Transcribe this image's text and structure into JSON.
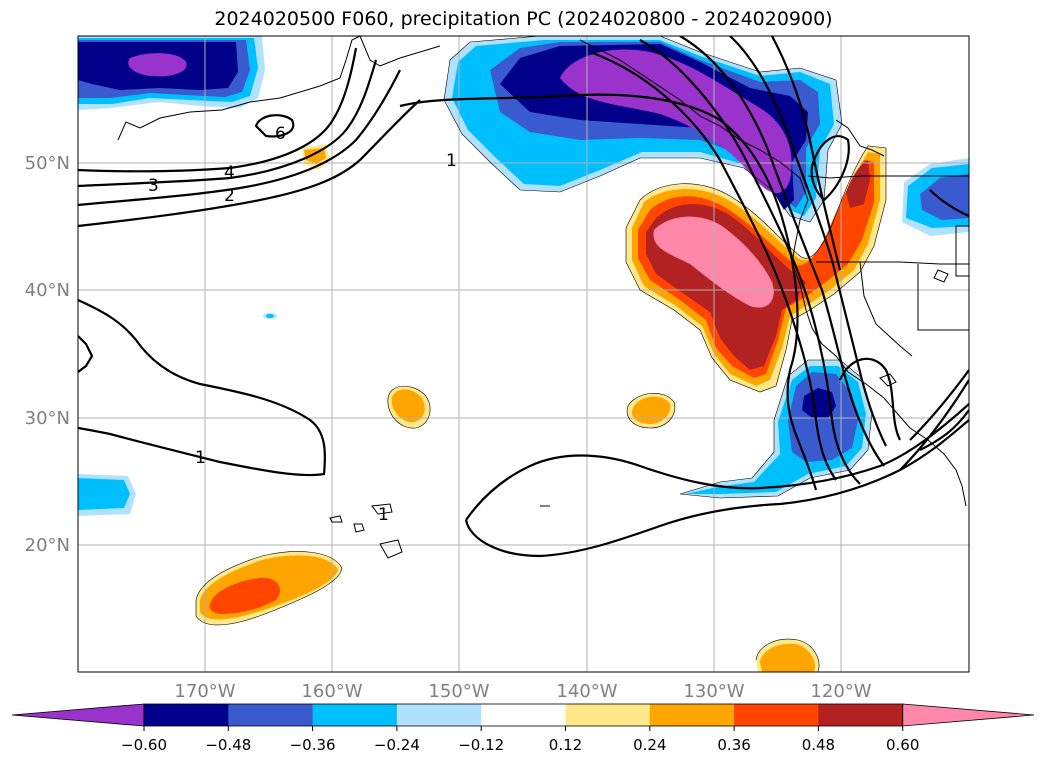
{
  "title": "2024020500 F060, precipitation PC (2024020800 - 2024020900)",
  "lat_labels": [
    "50°N",
    "40°N",
    "30°N",
    "20°N"
  ],
  "lon_labels": [
    "170°W",
    "160°W",
    "150°W",
    "140°W",
    "130°W",
    "120°W"
  ],
  "contour_labels": [
    "1",
    "2",
    "3",
    "4",
    "6",
    "1",
    "1"
  ],
  "colorbar": {
    "ticks": [
      "−0.60",
      "−0.48",
      "−0.36",
      "−0.24",
      "−0.12",
      "0.12",
      "0.24",
      "0.36",
      "0.48",
      "0.60"
    ],
    "colors": [
      "#9933cc",
      "#00008b",
      "#3a5bcf",
      "#00bfff",
      "#b0e2ff",
      "#ffffff",
      "#ffe88a",
      "#ffa500",
      "#ff4500",
      "#b22222",
      "#ff88aa"
    ]
  },
  "colors": {
    "purple": "#9933cc",
    "navy": "#00008b",
    "royal": "#3a5bcf",
    "sky": "#00bfff",
    "lightsky": "#b0e2ff",
    "yellow": "#ffe88a",
    "orange": "#ffa500",
    "redorange": "#ff4500",
    "firebrick": "#b22222",
    "pink": "#ff88aa"
  }
}
